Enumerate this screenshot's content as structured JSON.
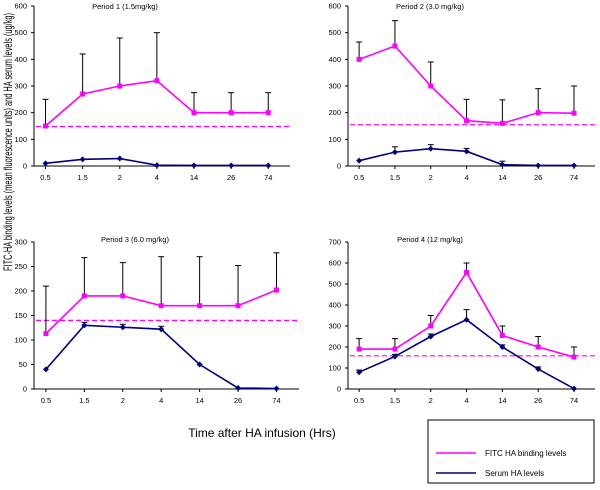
{
  "figure": {
    "ylabel": "FITC-HA binding levels (mean fluorescence units) and HA serum levels (ug/kg)",
    "xlabel": "Time after HA infusion (Hrs)",
    "legend": [
      {
        "label": "FITC HA binding levels",
        "color": "#ff00ff"
      },
      {
        "label": "Serum HA levels",
        "color": "#000080"
      }
    ],
    "colors": {
      "binding": "#ff00ff",
      "serum": "#000080",
      "errorbar": "#000000"
    }
  },
  "chart_data": [
    {
      "type": "line",
      "title": "Period 1 (1.5mg/kg)",
      "categories": [
        "0.5",
        "1.5",
        "2",
        "4",
        "14",
        "26",
        "74"
      ],
      "ylim": [
        0,
        600
      ],
      "yticks": [
        0,
        100,
        200,
        300,
        400,
        500,
        600
      ],
      "threshold": 148,
      "series": [
        {
          "name": "FITC HA binding levels",
          "values": [
            150,
            270,
            300,
            320,
            200,
            200,
            200
          ],
          "error_upper": [
            250,
            420,
            480,
            500,
            275,
            275,
            275
          ]
        },
        {
          "name": "Serum HA levels",
          "values": [
            10,
            25,
            28,
            3,
            2,
            2,
            2
          ]
        }
      ]
    },
    {
      "type": "line",
      "title": "Period 2 (3.0 mg/kg)",
      "categories": [
        "0.5",
        "1.5",
        "2",
        "4",
        "14",
        "26",
        "74"
      ],
      "ylim": [
        0,
        600
      ],
      "yticks": [
        0,
        100,
        200,
        300,
        400,
        500,
        600
      ],
      "threshold": 155,
      "series": [
        {
          "name": "FITC HA binding levels",
          "values": [
            400,
            450,
            300,
            170,
            160,
            200,
            198
          ],
          "error_upper": [
            465,
            545,
            390,
            250,
            248,
            290,
            300
          ]
        },
        {
          "name": "Serum HA levels",
          "values": [
            20,
            52,
            65,
            55,
            5,
            2,
            2
          ],
          "error_upper": [
            20,
            72,
            80,
            66,
            18,
            2,
            2
          ]
        }
      ]
    },
    {
      "type": "line",
      "title": "Period 3 (6.0 mg/kg)",
      "categories": [
        "0.5",
        "1.5",
        "2",
        "4",
        "14",
        "26",
        "74"
      ],
      "ylim": [
        0,
        300
      ],
      "yticks": [
        0,
        50,
        100,
        150,
        200,
        250,
        300
      ],
      "threshold": 140,
      "series": [
        {
          "name": "FITC HA binding levels",
          "values": [
            113,
            190,
            190,
            170,
            170,
            170,
            202
          ],
          "error_upper": [
            210,
            268,
            258,
            270,
            270,
            252,
            278
          ]
        },
        {
          "name": "Serum HA levels",
          "values": [
            40,
            130,
            126,
            122,
            50,
            2,
            1
          ],
          "error_upper": [
            40,
            136,
            132,
            128,
            50,
            2,
            1
          ]
        }
      ]
    },
    {
      "type": "line",
      "title": "Period 4 (12 mg/kg)",
      "categories": [
        "0.5",
        "1.5",
        "2",
        "4",
        "14",
        "26",
        "74"
      ],
      "ylim": [
        0,
        700
      ],
      "yticks": [
        0,
        100,
        200,
        300,
        400,
        500,
        600,
        700
      ],
      "threshold": 158,
      "series": [
        {
          "name": "FITC HA binding levels",
          "values": [
            190,
            190,
            300,
            555,
            255,
            200,
            152
          ],
          "error_upper": [
            240,
            240,
            350,
            600,
            300,
            250,
            200
          ]
        },
        {
          "name": "Serum HA levels",
          "values": [
            80,
            155,
            250,
            330,
            200,
            95,
            2
          ],
          "error_upper": [
            90,
            165,
            262,
            378,
            210,
            105,
            2
          ]
        }
      ]
    }
  ]
}
